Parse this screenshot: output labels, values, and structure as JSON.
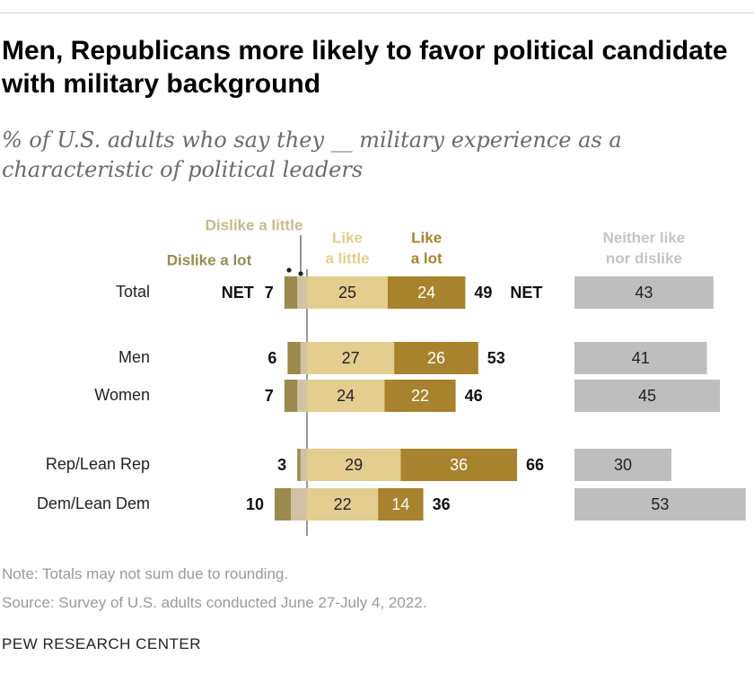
{
  "header": {
    "title": "Men, Republicans more likely to favor political candidate with military background",
    "subtitle": "% of U.S. adults who say they __ military experience as a characteristic of political leaders"
  },
  "colors": {
    "dislike_lot": "#9b8a4e",
    "dislike_little": "#cfc3a3",
    "like_little": "#e3cd8f",
    "like_lot": "#a8822d",
    "neither": "#bebebe",
    "neither_legend": "#c4c4c4",
    "text_dark": "#222222",
    "text_light": "#ffffff"
  },
  "legend": {
    "dislike_little": "Dislike a little",
    "dislike_lot": "Dislike a lot",
    "like_little": [
      "Like",
      "a little"
    ],
    "like_lot": [
      "Like",
      "a lot"
    ],
    "neither": [
      "Neither like",
      "nor dislike"
    ]
  },
  "chart_data": {
    "type": "bar",
    "stacked": "diverging",
    "categories": [
      "Total",
      "Men",
      "Women",
      "Rep/Lean Rep",
      "Dem/Lean Dem"
    ],
    "groups": [
      [
        0
      ],
      [
        1,
        2
      ],
      [
        3,
        4
      ]
    ],
    "series": [
      {
        "name": "Dislike a lot",
        "values": [
          4,
          4,
          4,
          1,
          5
        ]
      },
      {
        "name": "Dislike a little",
        "values": [
          3,
          2,
          3,
          2,
          5
        ]
      },
      {
        "name": "Like a little",
        "values": [
          25,
          27,
          24,
          29,
          22
        ]
      },
      {
        "name": "Like a lot",
        "values": [
          24,
          26,
          22,
          36,
          14
        ]
      },
      {
        "name": "Neither like nor dislike",
        "values": [
          43,
          41,
          45,
          30,
          53
        ]
      }
    ],
    "net_dislike": [
      "7",
      "6",
      "7",
      "3",
      "10"
    ],
    "net_like": [
      "49",
      "53",
      "46",
      "66",
      "36"
    ],
    "net_label": "NET"
  },
  "footer": {
    "note": "Note: Totals may not sum due to rounding.",
    "source": "Source: Survey of U.S. adults conducted June 27-July 4, 2022.",
    "brand": "PEW RESEARCH CENTER"
  }
}
